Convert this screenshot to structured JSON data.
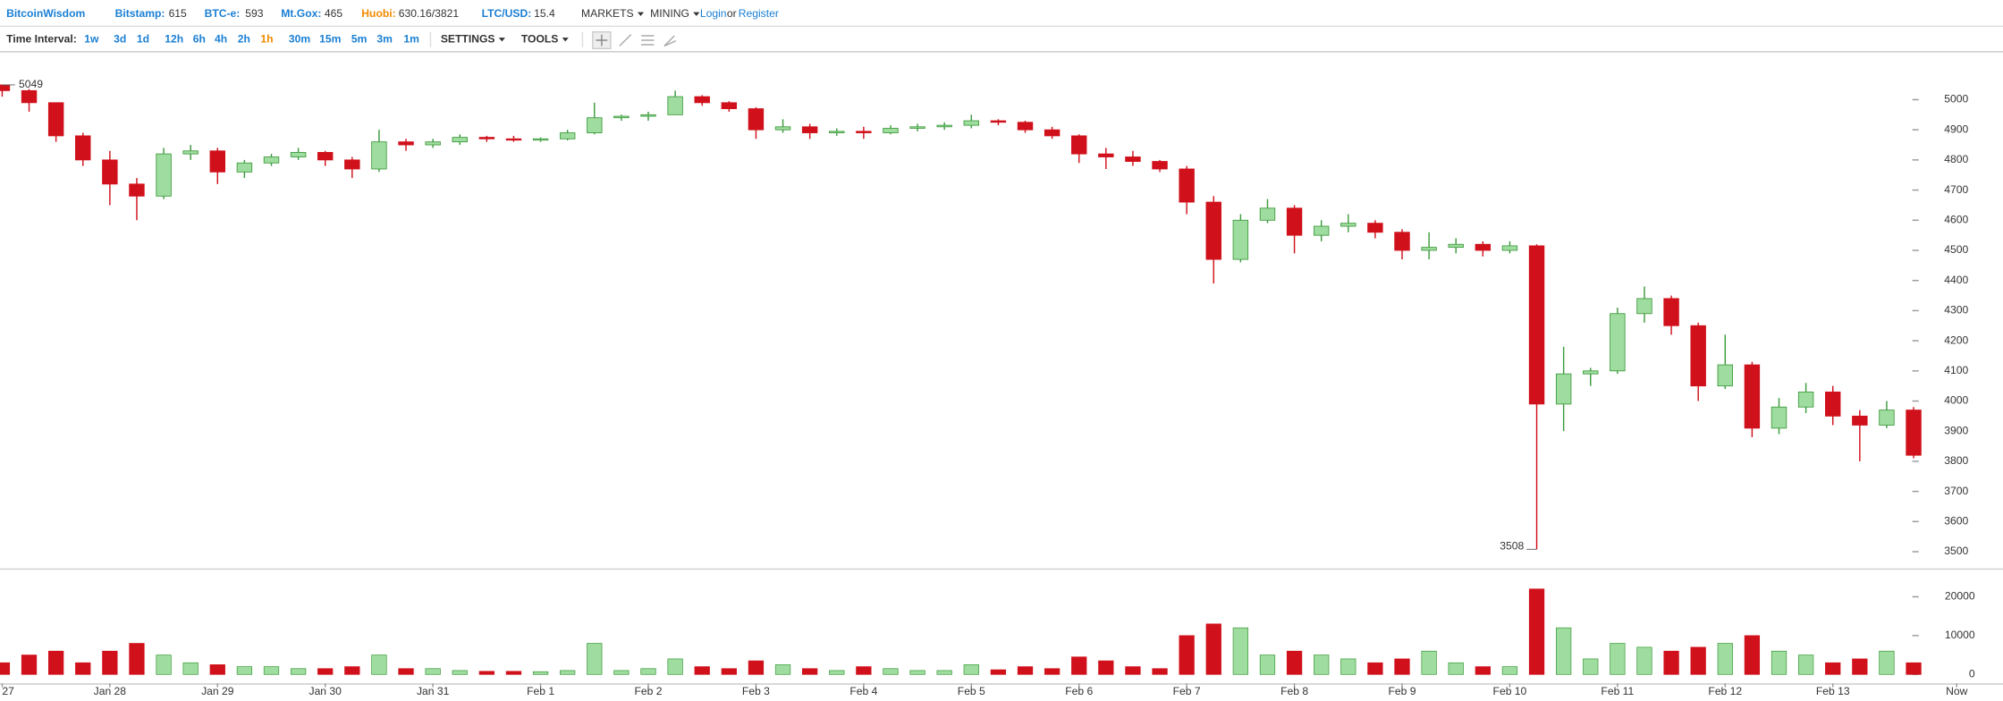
{
  "header": {
    "logo": "BitcoinWisdom",
    "tickers": [
      {
        "name": "Bitstamp:",
        "price": 615
      },
      {
        "name": "BTC-e:",
        "price": 593
      },
      {
        "name": "Mt.Gox:",
        "price": 465
      },
      {
        "name": "Huobi:",
        "price": "630.16/3821"
      },
      {
        "name": "LTC/USD:",
        "price": 15.4
      }
    ],
    "menus": [
      "MARKETS",
      "MINING"
    ],
    "login": "Login",
    "or": "or",
    "register": "Register"
  },
  "toolbar": {
    "label": "Time Interval:",
    "intervals": [
      "1w",
      "3d",
      "1d",
      "12h",
      "6h",
      "4h",
      "2h",
      "1h",
      "30m",
      "15m",
      "5m",
      "3m",
      "1m"
    ],
    "active_index": 7,
    "menus": [
      "SETTINGS",
      "TOOLS"
    ]
  },
  "chart_data": {
    "type": "candlestick",
    "x": [
      0,
      0.25,
      0.5,
      0.75,
      1,
      1.25,
      1.5,
      1.75,
      2,
      2.25,
      2.5,
      2.75,
      3,
      3.25,
      3.5,
      3.75,
      4,
      4.25,
      4.5,
      4.75,
      5,
      5.25,
      5.5,
      5.75,
      6,
      6.25,
      6.5,
      6.75,
      7,
      7.25,
      7.5,
      7.75,
      8,
      8.25,
      8.5,
      8.75,
      9,
      9.25,
      9.5,
      9.75,
      10,
      10.25,
      10.5,
      10.75,
      11,
      11.25,
      11.5,
      11.75,
      12,
      12.25,
      12.5,
      12.75,
      13,
      13.25,
      13.5,
      13.75,
      14,
      14.25,
      14.5,
      14.75,
      15,
      15.25,
      15.5,
      15.75,
      16,
      16.25,
      16.5,
      16.75,
      17,
      17.25,
      17.5,
      17.75
    ],
    "open": [
      5049,
      5030,
      4990,
      4880,
      4800,
      4720,
      4680,
      4820,
      4830,
      4760,
      4790,
      4810,
      4825,
      4800,
      4770,
      4860,
      4850,
      4860,
      4875,
      4870,
      4868,
      4870,
      4890,
      4940,
      4945,
      4950,
      5010,
      4990,
      4970,
      4900,
      4910,
      4890,
      4895,
      4890,
      4905,
      4910,
      4915,
      4930,
      4925,
      4900,
      4880,
      4820,
      4810,
      4795,
      4770,
      4660,
      4470,
      4600,
      4640,
      4550,
      4580,
      4590,
      4560,
      4500,
      4510,
      4520,
      4500,
      4515,
      3990,
      4090,
      4100,
      4290,
      4340,
      4250,
      4050,
      4120,
      3910,
      3980,
      4030,
      3950,
      3920,
      3970
    ],
    "high": [
      5049,
      5035,
      4990,
      4890,
      4830,
      4740,
      4840,
      4850,
      4840,
      4800,
      4820,
      4840,
      4830,
      4810,
      4900,
      4870,
      4870,
      4885,
      4880,
      4880,
      4875,
      4900,
      4990,
      4950,
      4960,
      5030,
      5015,
      4995,
      4975,
      4935,
      4920,
      4905,
      4910,
      4915,
      4920,
      4925,
      4950,
      4935,
      4930,
      4910,
      4885,
      4840,
      4830,
      4800,
      4780,
      4680,
      4620,
      4670,
      4650,
      4600,
      4620,
      4600,
      4570,
      4560,
      4540,
      4530,
      4530,
      4520,
      4180,
      4110,
      4310,
      4380,
      4350,
      4260,
      4220,
      4130,
      4010,
      4060,
      4050,
      3970,
      4000,
      3980
    ],
    "low": [
      5010,
      4960,
      4860,
      4780,
      4650,
      4600,
      4670,
      4800,
      4720,
      4740,
      4780,
      4800,
      4780,
      4740,
      4760,
      4830,
      4840,
      4850,
      4860,
      4860,
      4860,
      4865,
      4885,
      4930,
      4930,
      4950,
      4980,
      4960,
      4870,
      4890,
      4870,
      4880,
      4870,
      4885,
      4895,
      4900,
      4905,
      4915,
      4890,
      4870,
      4790,
      4770,
      4780,
      4760,
      4620,
      4390,
      4460,
      4590,
      4490,
      4530,
      4560,
      4540,
      4470,
      4470,
      4490,
      4480,
      4490,
      3508,
      3900,
      4050,
      4090,
      4260,
      4220,
      4000,
      4040,
      3880,
      3890,
      3960,
      3920,
      3800,
      3910,
      3810
    ],
    "close": [
      5030,
      4990,
      4880,
      4800,
      4720,
      4680,
      4820,
      4830,
      4760,
      4790,
      4810,
      4825,
      4800,
      4770,
      4860,
      4850,
      4860,
      4875,
      4870,
      4868,
      4870,
      4890,
      4940,
      4945,
      4950,
      5010,
      4990,
      4970,
      4900,
      4910,
      4890,
      4895,
      4890,
      4905,
      4910,
      4915,
      4930,
      4925,
      4900,
      4880,
      4820,
      4810,
      4795,
      4770,
      4660,
      4470,
      4600,
      4640,
      4550,
      4580,
      4590,
      4560,
      4500,
      4510,
      4520,
      4500,
      4515,
      3990,
      4090,
      4100,
      4290,
      4340,
      4250,
      4050,
      4120,
      3910,
      3980,
      4030,
      3950,
      3920,
      3970,
      3820
    ],
    "volume": [
      3000,
      5000,
      6000,
      3000,
      6000,
      8000,
      5000,
      3000,
      2500,
      2000,
      2000,
      1500,
      1500,
      2000,
      5000,
      1500,
      1500,
      1000,
      800,
      800,
      700,
      1000,
      8000,
      1000,
      1500,
      4000,
      2000,
      1500,
      3500,
      2500,
      1500,
      1000,
      2000,
      1500,
      1000,
      1000,
      2500,
      1200,
      2000,
      1500,
      4500,
      3500,
      2000,
      1500,
      10000,
      13000,
      12000,
      5000,
      6000,
      5000,
      4000,
      3000,
      4000,
      6000,
      3000,
      2000,
      2000,
      22000,
      12000,
      4000,
      8000,
      7000,
      6000,
      7000,
      8000,
      10000,
      6000,
      5000,
      3000,
      4000,
      6000,
      3000
    ],
    "up_color": "#9fdc9f",
    "down_color": "#d0101b",
    "xlim": [
      0,
      18.58
    ],
    "xticks": [
      {
        "value": 0,
        "label": "27"
      },
      {
        "value": 1,
        "label": "Jan 28"
      },
      {
        "value": 2,
        "label": "Jan 29"
      },
      {
        "value": 3,
        "label": "Jan 30"
      },
      {
        "value": 4,
        "label": "Jan 31"
      },
      {
        "value": 5,
        "label": "Feb 1"
      },
      {
        "value": 6,
        "label": "Feb 2"
      },
      {
        "value": 7,
        "label": "Feb 3"
      },
      {
        "value": 8,
        "label": "Feb 4"
      },
      {
        "value": 9,
        "label": "Feb 5"
      },
      {
        "value": 10,
        "label": "Feb 6"
      },
      {
        "value": 11,
        "label": "Feb 7"
      },
      {
        "value": 12,
        "label": "Feb 8"
      },
      {
        "value": 13,
        "label": "Feb 9"
      },
      {
        "value": 14,
        "label": "Feb 10"
      },
      {
        "value": 15,
        "label": "Feb 11"
      },
      {
        "value": 16,
        "label": "Feb 12"
      },
      {
        "value": 17,
        "label": "Feb 13"
      },
      {
        "value": 18.15,
        "label": "Now"
      }
    ],
    "ylim": [
      3453,
      5140
    ],
    "yticks": [
      3500,
      3600,
      3700,
      3800,
      3900,
      4000,
      4100,
      4200,
      4300,
      4400,
      4500,
      4600,
      4700,
      4800,
      4900,
      5000
    ],
    "y2lim": [
      0,
      25000
    ],
    "y2ticks": [
      0,
      10000,
      20000
    ]
  }
}
